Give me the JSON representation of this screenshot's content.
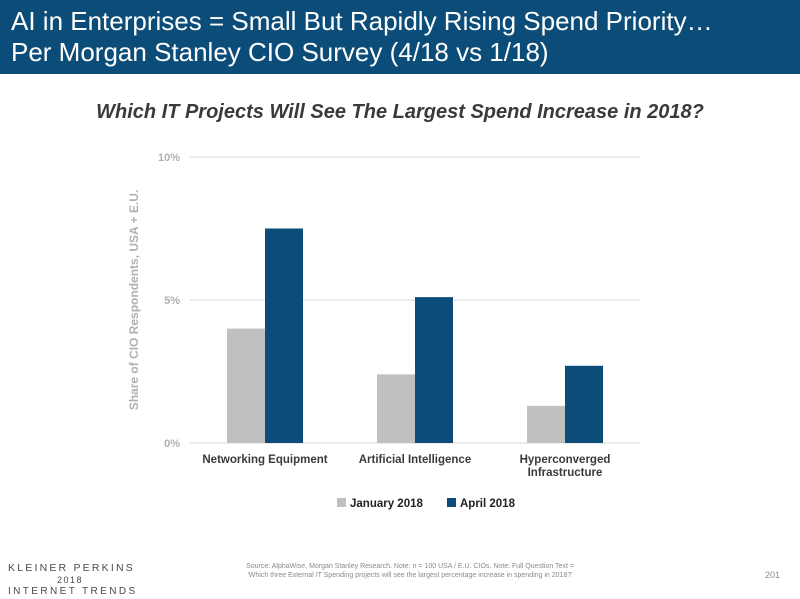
{
  "header": {
    "title_line1": "AI in Enterprises = Small But Rapidly Rising Spend Priority…",
    "title_line2": "Per Morgan Stanley CIO Survey (4/18 vs 1/18)"
  },
  "chart_data": {
    "type": "bar",
    "title": "Which IT Projects Will See The Largest Spend Increase in 2018?",
    "ylabel": "Share of CIO Respondents, USA + E.U.",
    "xlabel": "",
    "categories": [
      [
        "Networking Equipment"
      ],
      [
        "Artificial Intelligence"
      ],
      [
        "Hyperconverged",
        "Infrastructure"
      ]
    ],
    "series": [
      {
        "name": "January 2018",
        "color": "#c0c0c0",
        "values": [
          4.0,
          2.4,
          1.3
        ]
      },
      {
        "name": "April 2018",
        "color": "#0b4d78",
        "values": [
          7.5,
          5.1,
          2.7
        ]
      }
    ],
    "ylim": [
      0,
      10
    ],
    "yticks": [
      0,
      5,
      10
    ],
    "ytick_labels": [
      "0%",
      "5%",
      "10%"
    ],
    "grid": true,
    "legend": "bottom-center"
  },
  "footer": {
    "brand": "KLEINER PERKINS",
    "year": "2018",
    "report": "INTERNET TRENDS",
    "source_line1": "Source: AlphaWise, Morgan Stanley Research. Note: n = 100 USA / E.U. CIOs. Note: Full Question Text =",
    "source_line2": "'Which three External IT Spending projects will see the largest percentage increase in spending in 2018?'",
    "page": "201"
  }
}
